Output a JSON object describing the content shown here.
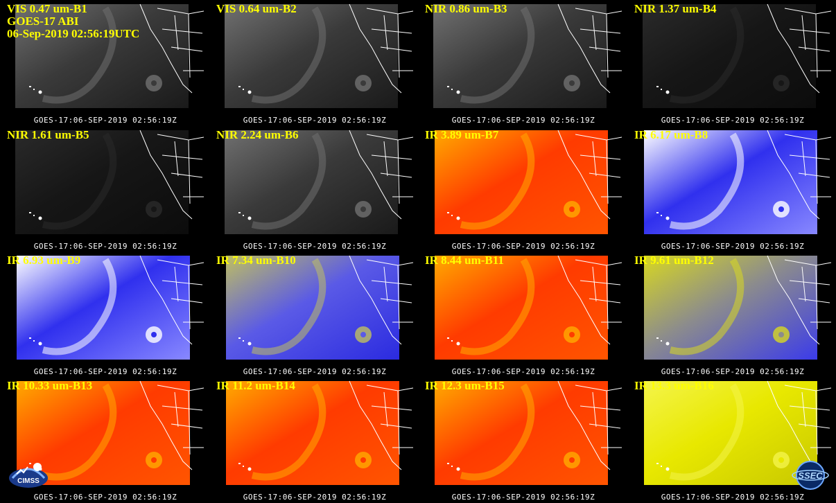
{
  "header": {
    "satellite": "GOES-17 ABI",
    "datetime": "06-Sep-2019 02:56:19UTC"
  },
  "panels": [
    {
      "label": "VIS 0.47 um-B1",
      "stamp": "GOES-17:06-SEP-2019 02:56:19Z",
      "style": "gray"
    },
    {
      "label": "VIS 0.64 um-B2",
      "stamp": "GOES-17:06-SEP-2019 02:56:19Z",
      "style": "gray"
    },
    {
      "label": "NIR 0.86 um-B3",
      "stamp": "GOES-17:06-SEP-2019 02:56:19Z",
      "style": "gray"
    },
    {
      "label": "NIR 1.37 um-B4",
      "stamp": "GOES-17:06-SEP-2019 02:56:19Z",
      "style": "dark"
    },
    {
      "label": "NIR 1.61 um-B5",
      "stamp": "GOES-17:06-SEP-2019 02:56:19Z",
      "style": "dark"
    },
    {
      "label": "NIR 2.24 um-B6",
      "stamp": "GOES-17:06-SEP-2019 02:56:19Z",
      "style": "gray"
    },
    {
      "label": "IR 3.89 um-B7",
      "stamp": "GOES-17:06-SEP-2019 02:56:19Z",
      "style": "ir"
    },
    {
      "label": "IR 6.17 um-B8",
      "stamp": "GOES-17:06-SEP-2019 02:56:19Z",
      "style": "wv"
    },
    {
      "label": "IR 6.93 um-B9",
      "stamp": "GOES-17:06-SEP-2019 02:56:19Z",
      "style": "wv"
    },
    {
      "label": "IR 7.34 um-B10",
      "stamp": "GOES-17:06-SEP-2019 02:56:19Z",
      "style": "wvy"
    },
    {
      "label": "IR 8.44 um-B11",
      "stamp": "GOES-17:06-SEP-2019 02:56:19Z",
      "style": "ir"
    },
    {
      "label": "IR 9.61 um-B12",
      "stamp": "GOES-17:06-SEP-2019 02:56:19Z",
      "style": "oz"
    },
    {
      "label": "IR 10.33 um-B13",
      "stamp": "GOES-17:06-SEP-2019 02:56:19Z",
      "style": "ir"
    },
    {
      "label": "IR 11.2 um-B14",
      "stamp": "GOES-17:06-SEP-2019 02:56:19Z",
      "style": "ir"
    },
    {
      "label": "IR 12.3 um-B15",
      "stamp": "GOES-17:06-SEP-2019 02:56:19Z",
      "style": "ir"
    },
    {
      "label": "IR 13.3 um-B16",
      "stamp": "GOES-17:06-SEP-2019 02:56:19Z",
      "style": "co2"
    }
  ],
  "logos": {
    "left": "CIMSS",
    "right": "SSEC"
  },
  "colors": {
    "label": "#ffff00",
    "stamp": "#ffffff",
    "ir_warm": "#ff3300",
    "ir_mid": "#ffaa00",
    "wv_blue": "#2222ee",
    "co2_yellow": "#e6e600"
  }
}
